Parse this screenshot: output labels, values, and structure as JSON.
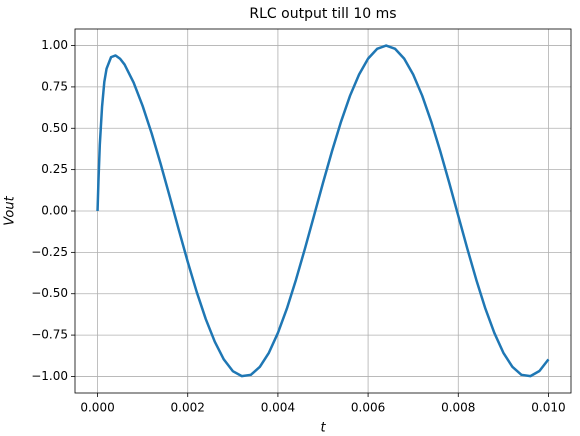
{
  "chart_data": {
    "type": "line",
    "title": "RLC output till 10 ms",
    "x_label": "t",
    "y_label": "Vout",
    "x": [
      0,
      2e-05,
      5e-05,
      0.0001,
      0.00015,
      0.0002,
      0.0003,
      0.0004,
      0.0005,
      0.0006,
      0.0008,
      0.001,
      0.0012,
      0.0014,
      0.0016,
      0.0018,
      0.002,
      0.0022,
      0.0024,
      0.0026,
      0.0028,
      0.003,
      0.0032,
      0.0034,
      0.0036,
      0.0038,
      0.004,
      0.0042,
      0.0044,
      0.0046,
      0.0048,
      0.005,
      0.0052,
      0.0054,
      0.0056,
      0.0058,
      0.006,
      0.0062,
      0.0064,
      0.0066,
      0.0068,
      0.007,
      0.0072,
      0.0074,
      0.0076,
      0.0078,
      0.008,
      0.0082,
      0.0084,
      0.0086,
      0.0088,
      0.009,
      0.0092,
      0.0094,
      0.0096,
      0.0098,
      0.01
    ],
    "series": [
      {
        "name": "Vout",
        "color": "#1f77b4",
        "values": [
          0,
          0.18,
          0.4,
          0.63,
          0.78,
          0.86,
          0.93,
          0.94,
          0.92,
          0.885,
          0.776,
          0.635,
          0.469,
          0.284,
          0.088,
          -0.112,
          -0.307,
          -0.49,
          -0.653,
          -0.79,
          -0.897,
          -0.968,
          -0.998,
          -0.99,
          -0.942,
          -0.857,
          -0.737,
          -0.589,
          -0.416,
          -0.227,
          -0.029,
          0.17,
          0.362,
          0.54,
          0.697,
          0.825,
          0.921,
          0.98,
          1.0,
          0.98,
          0.921,
          0.825,
          0.697,
          0.54,
          0.362,
          0.17,
          -0.029,
          -0.227,
          -0.416,
          -0.589,
          -0.737,
          -0.857,
          -0.942,
          -0.99,
          -0.998,
          -0.967,
          -0.897
        ]
      }
    ],
    "xlim": [
      -0.0005,
      0.0105
    ],
    "ylim": [
      -1.1,
      1.1
    ],
    "xticks": [
      {
        "value": 0,
        "label": "0.000"
      },
      {
        "value": 0.002,
        "label": "0.002"
      },
      {
        "value": 0.004,
        "label": "0.004"
      },
      {
        "value": 0.006,
        "label": "0.006"
      },
      {
        "value": 0.008,
        "label": "0.008"
      },
      {
        "value": 0.01,
        "label": "0.010"
      }
    ],
    "yticks": [
      {
        "value": -1,
        "label": "−1.00"
      },
      {
        "value": -0.75,
        "label": "−0.75"
      },
      {
        "value": -0.5,
        "label": "−0.50"
      },
      {
        "value": -0.25,
        "label": "−0.25"
      },
      {
        "value": 0,
        "label": "0.00"
      },
      {
        "value": 0.25,
        "label": "0.25"
      },
      {
        "value": 0.5,
        "label": "0.50"
      },
      {
        "value": 0.75,
        "label": "0.75"
      },
      {
        "value": 1,
        "label": "1.00"
      }
    ],
    "grid": true
  }
}
